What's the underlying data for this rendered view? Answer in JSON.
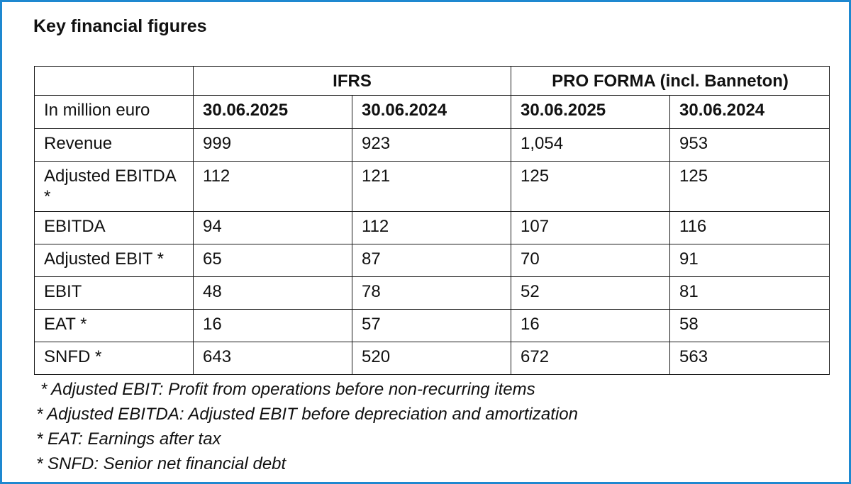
{
  "title": "Key financial figures",
  "colors": {
    "frame_border": "#1e88d0"
  },
  "table": {
    "groups": [
      "IFRS",
      "PRO FORMA (incl. Banneton)"
    ],
    "unit_label": "In million euro",
    "dates": [
      "30.06.2025",
      "30.06.2024",
      "30.06.2025",
      "30.06.2024"
    ],
    "rows": [
      {
        "label": "Revenue",
        "values": [
          "999",
          "923",
          "1,054",
          "953"
        ]
      },
      {
        "label": "Adjusted EBITDA *",
        "values": [
          "112",
          "121",
          "125",
          "125"
        ]
      },
      {
        "label": "EBITDA",
        "values": [
          "94",
          "112",
          "107",
          "116"
        ]
      },
      {
        "label": "Adjusted EBIT *",
        "values": [
          "65",
          "87",
          "70",
          "91"
        ]
      },
      {
        "label": "EBIT",
        "values": [
          "48",
          "78",
          "52",
          "81"
        ]
      },
      {
        "label": "EAT *",
        "values": [
          "16",
          "57",
          "16",
          "58"
        ]
      },
      {
        "label": "SNFD *",
        "values": [
          "643",
          "520",
          "672",
          "563"
        ]
      }
    ]
  },
  "footnotes": [
    "* Adjusted EBIT: Profit from operations before non-recurring items",
    "* Adjusted EBITDA: Adjusted EBIT before depreciation and amortization",
    "* EAT: Earnings after tax",
    "* SNFD: Senior net financial debt"
  ]
}
